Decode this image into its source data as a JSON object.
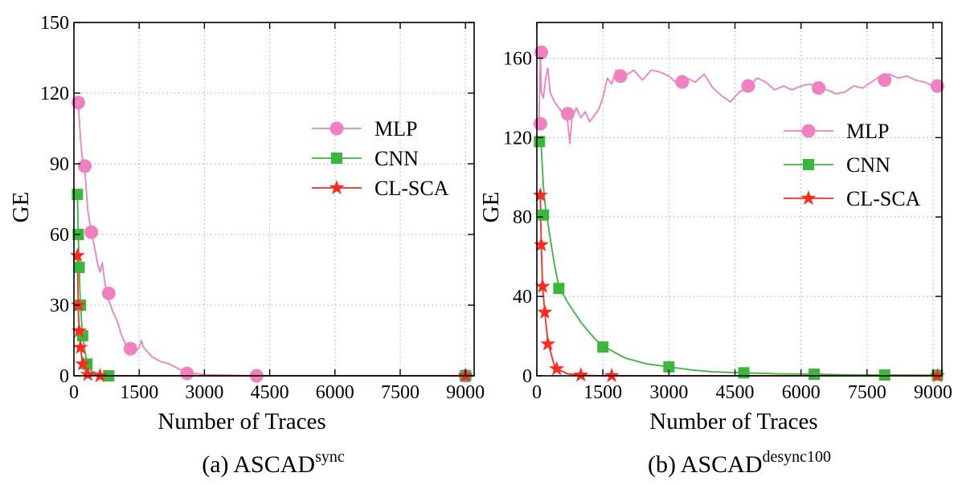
{
  "chart_data": [
    {
      "type": "line",
      "xlabel": "Number of Traces",
      "ylabel": "GE",
      "caption": {
        "prefix": "(a) ASCAD",
        "sup": "sync"
      },
      "xlim": [
        0,
        9200
      ],
      "ylim": [
        0,
        150
      ],
      "xticks": [
        0,
        1500,
        3000,
        4500,
        6000,
        7500,
        9000
      ],
      "yticks": [
        0,
        30,
        60,
        90,
        120,
        150
      ],
      "grid": true,
      "legend_position": "upper-right",
      "series": [
        {
          "name": "MLP",
          "color": "#f080bf",
          "marker": "circle",
          "points": [
            [
              50,
              115
            ],
            [
              100,
              116
            ],
            [
              150,
              101
            ],
            [
              200,
              91
            ],
            [
              250,
              88
            ],
            [
              320,
              70
            ],
            [
              400,
              61
            ],
            [
              480,
              54
            ],
            [
              550,
              47
            ],
            [
              600,
              44
            ],
            [
              650,
              48
            ],
            [
              700,
              41
            ],
            [
              750,
              35
            ],
            [
              800,
              32
            ],
            [
              900,
              27
            ],
            [
              1000,
              23
            ],
            [
              1100,
              17
            ],
            [
              1200,
              13
            ],
            [
              1300,
              12
            ],
            [
              1400,
              10
            ],
            [
              1500,
              12
            ],
            [
              1550,
              15
            ],
            [
              1600,
              12
            ],
            [
              1700,
              10
            ],
            [
              1800,
              8
            ],
            [
              2000,
              6
            ],
            [
              2200,
              5
            ],
            [
              2400,
              3
            ],
            [
              2600,
              1.5
            ],
            [
              2800,
              1
            ],
            [
              3000,
              0.5
            ],
            [
              3500,
              0.3
            ],
            [
              4200,
              0
            ],
            [
              5000,
              0
            ],
            [
              6000,
              0
            ],
            [
              7500,
              0
            ],
            [
              9000,
              0
            ],
            [
              9200,
              0
            ]
          ],
          "markers": [
            [
              100,
              116
            ],
            [
              250,
              89
            ],
            [
              400,
              61
            ],
            [
              800,
              35
            ],
            [
              1300,
              11.5
            ],
            [
              2600,
              1
            ],
            [
              4200,
              0
            ],
            [
              9000,
              0
            ]
          ]
        },
        {
          "name": "CNN",
          "color": "#3db63d",
          "marker": "square",
          "points": [
            [
              50,
              78
            ],
            [
              80,
              77
            ],
            [
              100,
              60
            ],
            [
              120,
              46
            ],
            [
              150,
              30
            ],
            [
              200,
              17
            ],
            [
              300,
              5
            ],
            [
              400,
              2
            ],
            [
              600,
              0.5
            ],
            [
              800,
              0
            ],
            [
              1500,
              0
            ],
            [
              3000,
              0
            ],
            [
              6000,
              0
            ],
            [
              9000,
              0
            ],
            [
              9200,
              0
            ]
          ],
          "markers": [
            [
              80,
              77
            ],
            [
              100,
              60
            ],
            [
              120,
              46
            ],
            [
              150,
              30
            ],
            [
              200,
              17
            ],
            [
              300,
              5
            ],
            [
              800,
              0
            ],
            [
              9000,
              0
            ]
          ]
        },
        {
          "name": "CL-SCA",
          "color": "#ff2a1f",
          "marker": "star",
          "points": [
            [
              50,
              52
            ],
            [
              80,
              51
            ],
            [
              100,
              30
            ],
            [
              120,
              19
            ],
            [
              150,
              12
            ],
            [
              200,
              5
            ],
            [
              300,
              0.5
            ],
            [
              600,
              0
            ],
            [
              1500,
              0
            ],
            [
              3000,
              0
            ],
            [
              6000,
              0
            ],
            [
              9000,
              0
            ],
            [
              9200,
              0
            ]
          ],
          "markers": [
            [
              80,
              51
            ],
            [
              100,
              30
            ],
            [
              120,
              19
            ],
            [
              150,
              12
            ],
            [
              200,
              5
            ],
            [
              320,
              0.5
            ],
            [
              600,
              0
            ],
            [
              9000,
              0
            ]
          ]
        }
      ]
    },
    {
      "type": "line",
      "xlabel": "Number of Traces",
      "ylabel": "GE",
      "caption": {
        "prefix": "(b) ASCAD",
        "sup": "desync100"
      },
      "xlim": [
        0,
        9200
      ],
      "ylim": [
        0,
        178
      ],
      "xticks": [
        0,
        1500,
        3000,
        4500,
        6000,
        7500,
        9000
      ],
      "yticks": [
        0,
        40,
        80,
        120,
        160
      ],
      "grid": true,
      "legend_position": "right",
      "series": [
        {
          "name": "MLP",
          "color": "#f080bf",
          "marker": "circle",
          "points": [
            [
              50,
              127
            ],
            [
              80,
              163
            ],
            [
              100,
              143
            ],
            [
              150,
              140
            ],
            [
              200,
              150
            ],
            [
              250,
              155
            ],
            [
              300,
              143
            ],
            [
              400,
              138
            ],
            [
              500,
              135
            ],
            [
              600,
              132
            ],
            [
              700,
              128
            ],
            [
              750,
              117
            ],
            [
              800,
              130
            ],
            [
              900,
              135
            ],
            [
              1000,
              130
            ],
            [
              1100,
              133
            ],
            [
              1200,
              128
            ],
            [
              1300,
              131
            ],
            [
              1400,
              134
            ],
            [
              1500,
              140
            ],
            [
              1600,
              150
            ],
            [
              1700,
              147
            ],
            [
              1800,
              154
            ],
            [
              2000,
              151
            ],
            [
              2200,
              154
            ],
            [
              2400,
              149
            ],
            [
              2600,
              154
            ],
            [
              2800,
              153
            ],
            [
              3000,
              151
            ],
            [
              3200,
              147
            ],
            [
              3400,
              150
            ],
            [
              3600,
              148
            ],
            [
              3800,
              152
            ],
            [
              4000,
              145
            ],
            [
              4200,
              141
            ],
            [
              4400,
              138
            ],
            [
              4600,
              143
            ],
            [
              4800,
              145
            ],
            [
              5000,
              150
            ],
            [
              5200,
              148
            ],
            [
              5400,
              144
            ],
            [
              5600,
              146
            ],
            [
              5800,
              144
            ],
            [
              6000,
              146
            ],
            [
              6200,
              147
            ],
            [
              6400,
              145
            ],
            [
              6600,
              144
            ],
            [
              6800,
              142
            ],
            [
              7000,
              143
            ],
            [
              7200,
              146
            ],
            [
              7400,
              145
            ],
            [
              7600,
              148
            ],
            [
              7800,
              151
            ],
            [
              8000,
              152
            ],
            [
              8200,
              150
            ],
            [
              8400,
              151
            ],
            [
              8600,
              149
            ],
            [
              8800,
              148
            ],
            [
              9000,
              146
            ],
            [
              9200,
              146
            ]
          ],
          "markers": [
            [
              80,
              127
            ],
            [
              100,
              163
            ],
            [
              700,
              132
            ],
            [
              1900,
              151
            ],
            [
              3300,
              148
            ],
            [
              4800,
              146
            ],
            [
              6400,
              145
            ],
            [
              7900,
              149
            ],
            [
              9100,
              146
            ]
          ]
        },
        {
          "name": "CNN",
          "color": "#3db63d",
          "marker": "square",
          "points": [
            [
              60,
              120
            ],
            [
              100,
              115
            ],
            [
              150,
              95
            ],
            [
              200,
              84
            ],
            [
              300,
              70
            ],
            [
              400,
              56
            ],
            [
              500,
              45
            ],
            [
              700,
              37
            ],
            [
              1000,
              27
            ],
            [
              1300,
              19
            ],
            [
              1500,
              15
            ],
            [
              2000,
              9
            ],
            [
              2500,
              6
            ],
            [
              3000,
              4.5
            ],
            [
              3500,
              3
            ],
            [
              4000,
              2
            ],
            [
              4700,
              1.5
            ],
            [
              5500,
              1
            ],
            [
              6300,
              0.8
            ],
            [
              7000,
              0.5
            ],
            [
              8000,
              0.4
            ],
            [
              9000,
              0.3
            ],
            [
              9200,
              0.3
            ]
          ],
          "markers": [
            [
              60,
              118
            ],
            [
              150,
              81
            ],
            [
              500,
              44
            ],
            [
              1500,
              14.5
            ],
            [
              3000,
              4.5
            ],
            [
              4700,
              1.5
            ],
            [
              6300,
              0.8
            ],
            [
              7900,
              0.4
            ],
            [
              9100,
              0.3
            ]
          ]
        },
        {
          "name": "CL-SCA",
          "color": "#ff2a1f",
          "marker": "star",
          "points": [
            [
              60,
              92
            ],
            [
              80,
              90
            ],
            [
              100,
              66
            ],
            [
              130,
              45
            ],
            [
              180,
              32
            ],
            [
              250,
              17
            ],
            [
              400,
              5
            ],
            [
              500,
              3
            ],
            [
              700,
              1
            ],
            [
              1000,
              0.3
            ],
            [
              1500,
              0
            ],
            [
              3000,
              0
            ],
            [
              6000,
              0
            ],
            [
              9000,
              0
            ],
            [
              9200,
              0
            ]
          ],
          "markers": [
            [
              80,
              91
            ],
            [
              100,
              66
            ],
            [
              130,
              45
            ],
            [
              180,
              32
            ],
            [
              250,
              16
            ],
            [
              450,
              3.5
            ],
            [
              1000,
              0.3
            ],
            [
              1700,
              0
            ],
            [
              9100,
              0
            ]
          ]
        }
      ]
    }
  ]
}
